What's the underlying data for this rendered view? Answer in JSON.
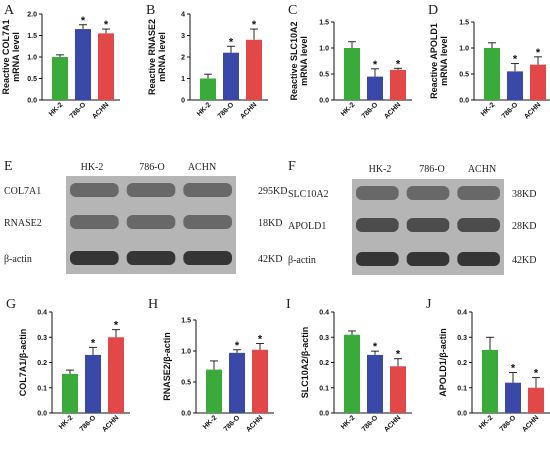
{
  "colors": {
    "hk2": "#3aaa3a",
    "o786": "#3a48a8",
    "achn": "#e24848"
  },
  "chart_data": [
    {
      "panel": "A",
      "type": "bar",
      "categories": [
        "HK-2",
        "786-O",
        "ACHN"
      ],
      "values": [
        1.0,
        1.65,
        1.55
      ],
      "errors": [
        0.05,
        0.1,
        0.1
      ],
      "significant": [
        false,
        true,
        true
      ],
      "ylabel": [
        "Reactive COL7A1",
        "mRNA level"
      ],
      "ylim": [
        0,
        2.0
      ],
      "yticks": [
        "0.0",
        "0.5",
        "1.0",
        "1.5",
        "2.0"
      ]
    },
    {
      "panel": "B",
      "type": "bar",
      "categories": [
        "HK-2",
        "786-O",
        "ACHN"
      ],
      "values": [
        1.0,
        2.2,
        2.8
      ],
      "errors": [
        0.2,
        0.3,
        0.5
      ],
      "significant": [
        false,
        true,
        true
      ],
      "ylabel": [
        "Reactive RNASE2",
        "mRNA level"
      ],
      "ylim": [
        0,
        4
      ],
      "yticks": [
        "0",
        "1",
        "2",
        "3",
        "4"
      ]
    },
    {
      "panel": "C",
      "type": "bar",
      "categories": [
        "HK-2",
        "786-O",
        "ACHN"
      ],
      "values": [
        1.0,
        0.45,
        0.58
      ],
      "errors": [
        0.12,
        0.15,
        0.03
      ],
      "significant": [
        false,
        true,
        true
      ],
      "ylabel": [
        "Reactive SLC10A2",
        "mRNA level"
      ],
      "ylim": [
        0,
        1.5
      ],
      "yticks": [
        "0.0",
        "0.5",
        "1.0",
        "1.5"
      ]
    },
    {
      "panel": "D",
      "type": "bar",
      "categories": [
        "HK-2",
        "786-O",
        "ACHN"
      ],
      "values": [
        1.0,
        0.55,
        0.68
      ],
      "errors": [
        0.1,
        0.15,
        0.15
      ],
      "significant": [
        false,
        true,
        true
      ],
      "ylabel": [
        "Reactive APOLD1",
        "mRNA level"
      ],
      "ylim": [
        0,
        1.5
      ],
      "yticks": [
        "0.0",
        "0.5",
        "1.0",
        "1.5"
      ]
    },
    {
      "panel": "G",
      "type": "bar",
      "categories": [
        "HK-2",
        "786-O",
        "ACHN"
      ],
      "values": [
        0.155,
        0.23,
        0.3
      ],
      "errors": [
        0.015,
        0.03,
        0.03
      ],
      "significant": [
        false,
        true,
        true
      ],
      "ylabel": [
        "COL7A1/β-actin"
      ],
      "ylim": [
        0,
        0.4
      ],
      "yticks": [
        "0.0",
        "0.1",
        "0.2",
        "0.3",
        "0.4"
      ]
    },
    {
      "panel": "H",
      "type": "bar",
      "categories": [
        "HK-2",
        "786-O",
        "ACHN"
      ],
      "values": [
        0.7,
        0.97,
        1.02
      ],
      "errors": [
        0.14,
        0.05,
        0.1
      ],
      "significant": [
        false,
        true,
        true
      ],
      "ylabel": [
        "RNASE2/β-actin"
      ],
      "ylim": [
        0,
        1.5
      ],
      "yticks": [
        "0.0",
        "0.5",
        "1.0",
        "1.5"
      ]
    },
    {
      "panel": "I",
      "type": "bar",
      "categories": [
        "HK-2",
        "786-O",
        "ACHN"
      ],
      "values": [
        0.31,
        0.23,
        0.185
      ],
      "errors": [
        0.015,
        0.015,
        0.03
      ],
      "significant": [
        false,
        true,
        true
      ],
      "ylabel": [
        "SLC10A2/β-actin"
      ],
      "ylim": [
        0,
        0.4
      ],
      "yticks": [
        "0.0",
        "0.1",
        "0.2",
        "0.3",
        "0.4"
      ]
    },
    {
      "panel": "J",
      "type": "bar",
      "categories": [
        "HK-2",
        "786-O",
        "ACHN"
      ],
      "values": [
        0.25,
        0.12,
        0.1
      ],
      "errors": [
        0.05,
        0.04,
        0.04
      ],
      "significant": [
        false,
        true,
        true
      ],
      "ylabel": [
        "APOLD1/β-actin"
      ],
      "ylim": [
        0,
        0.4
      ],
      "yticks": [
        "0.0",
        "0.1",
        "0.2",
        "0.3",
        "0.4"
      ]
    }
  ],
  "blots": [
    {
      "panel": "E",
      "lanes": [
        "HK-2",
        "786-O",
        "ACHN"
      ],
      "rows": [
        {
          "protein": "COL7A1",
          "size": "295KD"
        },
        {
          "protein": "RNASE2",
          "size": "18KD"
        },
        {
          "protein": "β-actin",
          "size": "42KD"
        }
      ]
    },
    {
      "panel": "F",
      "lanes": [
        "HK-2",
        "786-O",
        "ACHN"
      ],
      "rows": [
        {
          "protein": "SLC10A2",
          "size": "38KD"
        },
        {
          "protein": "APOLD1",
          "size": "28KD"
        },
        {
          "protein": "β-actin",
          "size": "42KD"
        }
      ]
    }
  ]
}
